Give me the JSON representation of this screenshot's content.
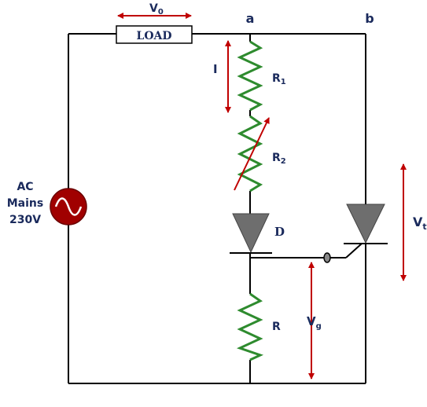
{
  "labels": {
    "v0_main": "V",
    "v0_sub": "0",
    "load": "LOAD",
    "node_a": "a",
    "node_b": "b",
    "current": "I",
    "r1_main": "R",
    "r1_sub": "1",
    "r2_main": "R",
    "r2_sub": "2",
    "source_line1": "AC",
    "source_line2": "Mains",
    "source_line3": "230V",
    "diode": "D",
    "resistor_r": "R",
    "vg_main": "V",
    "vg_sub": "g",
    "vt_main": "V",
    "vt_sub": "t"
  },
  "colors": {
    "wire": "#000000",
    "resistor": "#2e8b2e",
    "arrow": "#c00000",
    "source": "#a00000",
    "device": "#6e6e6e",
    "text": "#1a2a5c"
  }
}
